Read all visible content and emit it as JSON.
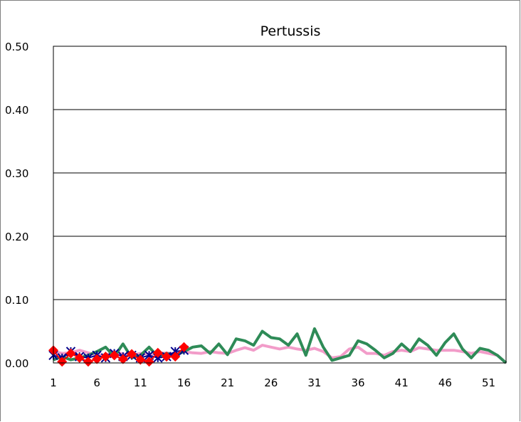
{
  "chart_data": {
    "type": "line",
    "title": "Pertussis",
    "xlabel": "",
    "ylabel": "",
    "ylim": [
      0,
      0.5
    ],
    "yticks": [
      "0.00",
      "0.10",
      "0.20",
      "0.30",
      "0.40",
      "0.50"
    ],
    "xticks": [
      "1",
      "6",
      "11",
      "16",
      "21",
      "26",
      "31",
      "36",
      "41",
      "46",
      "51"
    ],
    "x_range": [
      1,
      53
    ],
    "grid": "horizontal",
    "legend": "none",
    "series": [
      {
        "color": "#f29cc9",
        "marker": "none",
        "x": [
          1,
          2,
          3,
          4,
          5,
          6,
          7,
          8,
          9,
          10,
          11,
          12,
          13,
          14,
          15,
          16,
          17,
          18,
          19,
          20,
          21,
          22,
          23,
          24,
          25,
          26,
          27,
          28,
          29,
          30,
          31,
          32,
          33,
          34,
          35,
          36,
          37,
          38,
          39,
          40,
          41,
          42,
          43,
          44,
          45,
          46,
          47,
          48,
          49,
          50,
          51,
          52,
          53
        ],
        "values": [
          0.018,
          0.015,
          0.016,
          0.02,
          0.016,
          0.012,
          0.012,
          0.018,
          0.014,
          0.012,
          0.015,
          0.014,
          0.014,
          0.016,
          0.014,
          0.018,
          0.016,
          0.015,
          0.018,
          0.016,
          0.015,
          0.02,
          0.024,
          0.02,
          0.028,
          0.025,
          0.022,
          0.025,
          0.022,
          0.02,
          0.023,
          0.018,
          0.008,
          0.01,
          0.022,
          0.025,
          0.015,
          0.015,
          0.012,
          0.018,
          0.02,
          0.018,
          0.024,
          0.022,
          0.02,
          0.02,
          0.02,
          0.018,
          0.015,
          0.018,
          0.015,
          0.012,
          0.0
        ]
      },
      {
        "color": "#2e8b57",
        "marker": "none",
        "x": [
          1,
          2,
          3,
          4,
          5,
          6,
          7,
          8,
          9,
          10,
          11,
          12,
          13,
          14,
          15,
          16,
          17,
          18,
          19,
          20,
          21,
          22,
          23,
          24,
          25,
          26,
          27,
          28,
          29,
          30,
          31,
          32,
          33,
          34,
          35,
          36,
          37,
          38,
          39,
          40,
          41,
          42,
          43,
          44,
          45,
          46,
          47,
          48,
          49,
          50,
          51,
          52,
          53
        ],
        "values": [
          0.005,
          0.01,
          0.005,
          0.008,
          0.012,
          0.018,
          0.025,
          0.01,
          0.03,
          0.008,
          0.012,
          0.025,
          0.01,
          0.015,
          0.012,
          0.018,
          0.025,
          0.027,
          0.015,
          0.03,
          0.013,
          0.038,
          0.035,
          0.028,
          0.05,
          0.04,
          0.038,
          0.028,
          0.046,
          0.012,
          0.054,
          0.025,
          0.004,
          0.008,
          0.012,
          0.035,
          0.03,
          0.02,
          0.008,
          0.015,
          0.03,
          0.018,
          0.038,
          0.028,
          0.012,
          0.032,
          0.046,
          0.022,
          0.008,
          0.023,
          0.02,
          0.012,
          0.0
        ]
      },
      {
        "color": "#00008b",
        "marker": "asterisk",
        "x": [
          1,
          2,
          3,
          4,
          5,
          6,
          7,
          8,
          9,
          10,
          11,
          12,
          13,
          14,
          15,
          16
        ],
        "values": [
          0.012,
          0.008,
          0.018,
          0.01,
          0.008,
          0.012,
          0.008,
          0.015,
          0.01,
          0.012,
          0.008,
          0.012,
          0.008,
          0.01,
          0.018,
          0.02
        ]
      },
      {
        "color": "#ff0000",
        "marker": "diamond",
        "x": [
          1,
          2,
          3,
          4,
          5,
          6,
          7,
          8,
          9,
          10,
          11,
          12,
          13,
          14,
          15,
          16
        ],
        "values": [
          0.02,
          0.002,
          0.015,
          0.008,
          0.002,
          0.006,
          0.01,
          0.012,
          0.006,
          0.014,
          0.005,
          0.002,
          0.016,
          0.01,
          0.01,
          0.025
        ]
      }
    ]
  }
}
